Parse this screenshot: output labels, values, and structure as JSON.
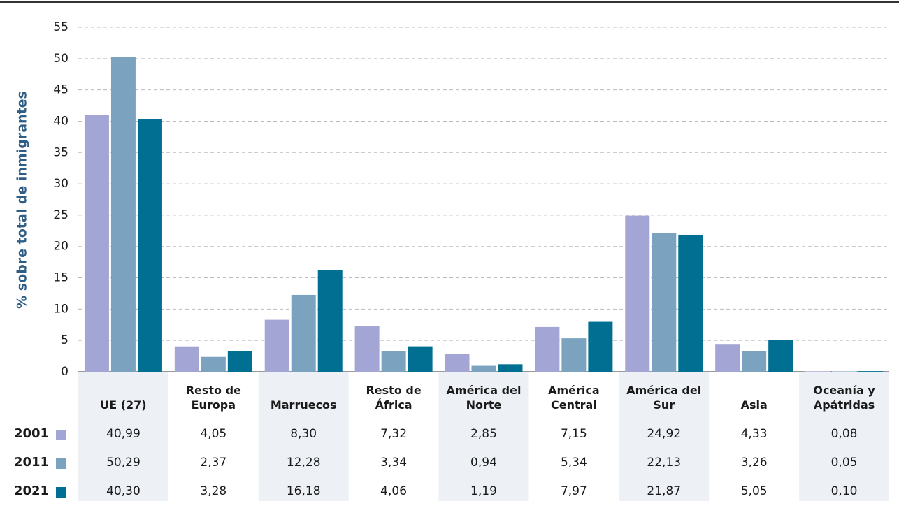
{
  "chart_data": {
    "type": "bar",
    "y_label": "% sobre total de inmigrantes",
    "categories": [
      "UE (27)",
      "Resto de Europa",
      "Marruecos",
      "Resto de África",
      "América del Norte",
      "América Central",
      "América del Sur",
      "Asia",
      "Oceanía y Apátridas"
    ],
    "series": [
      {
        "name": "2001",
        "color": "#a3a6d4",
        "values": [
          40.99,
          4.05,
          8.3,
          7.32,
          2.85,
          7.15,
          24.92,
          4.33,
          0.08
        ],
        "value_labels": [
          "40,99",
          "4,05",
          "8,30",
          "7,32",
          "2,85",
          "7,15",
          "24,92",
          "4,33",
          "0,08"
        ]
      },
      {
        "name": "2011",
        "color": "#7ba3bf",
        "values": [
          50.29,
          2.37,
          12.28,
          3.34,
          0.94,
          5.34,
          22.13,
          3.26,
          0.05
        ],
        "value_labels": [
          "50,29",
          "2,37",
          "12,28",
          "3,34",
          "0,94",
          "5,34",
          "22,13",
          "3,26",
          "0,05"
        ]
      },
      {
        "name": "2021",
        "color": "#006f91",
        "values": [
          40.3,
          3.28,
          16.18,
          4.06,
          1.19,
          7.97,
          21.87,
          5.05,
          0.1
        ],
        "value_labels": [
          "40,30",
          "3,28",
          "16,18",
          "4,06",
          "1,19",
          "7,97",
          "21,87",
          "5,05",
          "0,10"
        ]
      }
    ],
    "ylim": [
      0,
      55
    ],
    "yticks": [
      0,
      5,
      10,
      15,
      20,
      25,
      30,
      35,
      40,
      45,
      50,
      55
    ],
    "grid": true
  }
}
